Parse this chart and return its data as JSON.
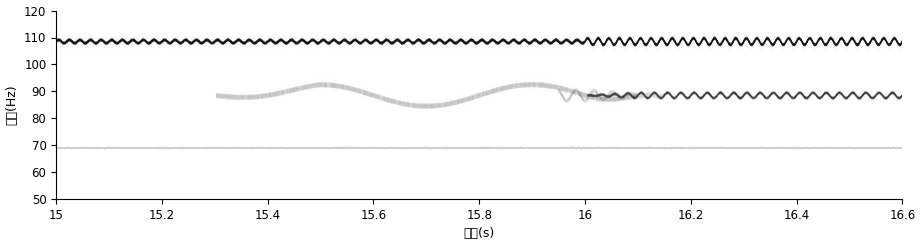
{
  "xlabel": "时间(s)",
  "ylabel": "频率(Hz)",
  "xlim": [
    15,
    16.6
  ],
  "ylim": [
    50,
    120
  ],
  "xticks": [
    15,
    15.2,
    15.4,
    15.6,
    15.8,
    16,
    16.2,
    16.4,
    16.6
  ],
  "yticks": [
    50,
    60,
    70,
    80,
    90,
    100,
    110,
    120
  ],
  "background_color": "#ffffff",
  "figsize": [
    9.21,
    2.46
  ],
  "dpi": 100
}
